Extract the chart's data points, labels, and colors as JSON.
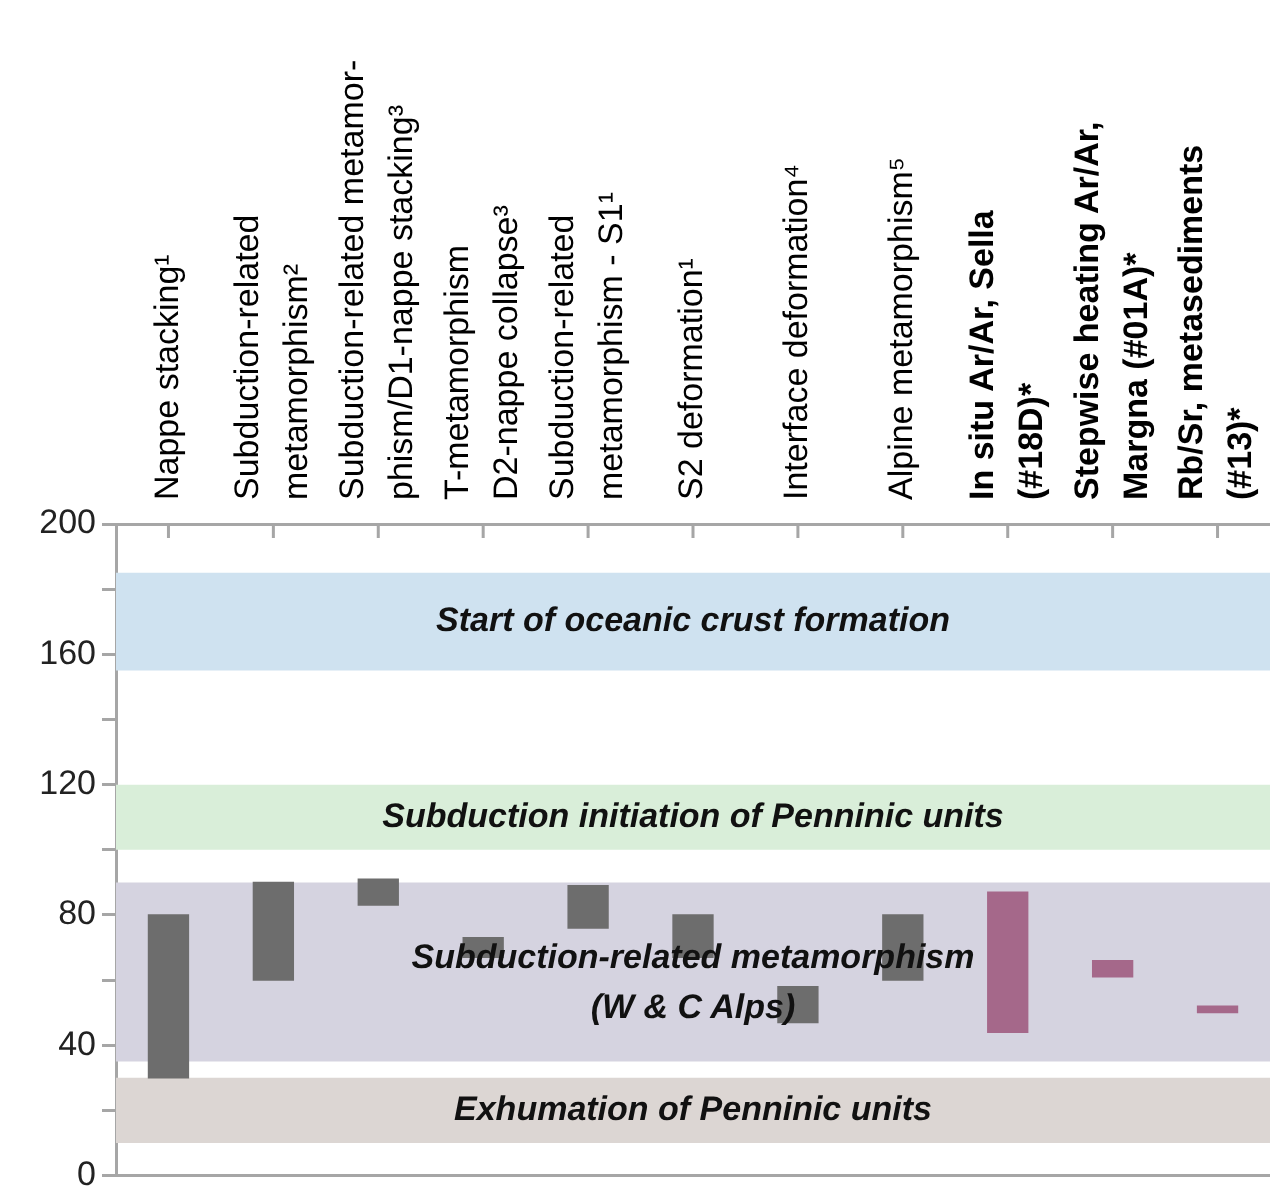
{
  "chart_data": {
    "type": "bar",
    "categories": [
      "Nappe stacking¹",
      "Subduction-related\nmetamorphism²",
      "Subduction-related metamor-\nphism/D1-nappe stacking³",
      "T-metamorphism\nD2-nappe collapse³",
      "Subduction-related\nmetamorphism - S1¹",
      "S2 deformation¹",
      "Interface deformation⁴",
      "Alpine metamorphism⁵",
      "In situ Ar/Ar, Sella\n(#18D)*",
      "Stepwise heating Ar/Ar,\nMargna (#01A)*",
      "Rb/Sr, metasediments\n(#13)*"
    ],
    "series": [
      {
        "color": "#6d6d6d",
        "base": [
          30,
          60,
          83,
          67,
          76,
          67,
          47,
          60,
          null,
          null,
          null
        ],
        "values": [
          50,
          30,
          8,
          6,
          13,
          13,
          11,
          20,
          null,
          null,
          null
        ]
      },
      {
        "color": "#a5688a",
        "base": [
          null,
          null,
          null,
          null,
          null,
          null,
          null,
          null,
          44,
          61,
          50
        ],
        "values": [
          null,
          null,
          null,
          null,
          null,
          null,
          null,
          null,
          43,
          5,
          2
        ]
      }
    ],
    "ylim": [
      0,
      200
    ],
    "yticks": [
      0,
      {
        "value": 20,
        "label": null
      },
      40,
      {
        "value": 60,
        "label": null
      },
      80,
      {
        "value": 100,
        "label": null
      },
      120,
      {
        "value": 140,
        "label": null
      },
      160,
      {
        "value": 180,
        "label": null
      },
      200
    ],
    "grid": false,
    "legend": false,
    "bands": [
      {
        "axis": "y",
        "from": 155,
        "to": 185,
        "label": "Start of oceanic crust formation",
        "color": "#cfe2f0"
      },
      {
        "axis": "y",
        "from": 100,
        "to": 120,
        "label": "Subduction initiation of Penninic units",
        "color": "#d9eed9"
      },
      {
        "axis": "y",
        "from": 35,
        "to": 90,
        "label": "Subduction-related metamorphism\n(W & C Alps)",
        "color": "#d5d3e0"
      },
      {
        "axis": "y",
        "from": 10,
        "to": 30,
        "label": "Exhumation of Penninic units",
        "color": "#dcd6d3"
      }
    ]
  }
}
